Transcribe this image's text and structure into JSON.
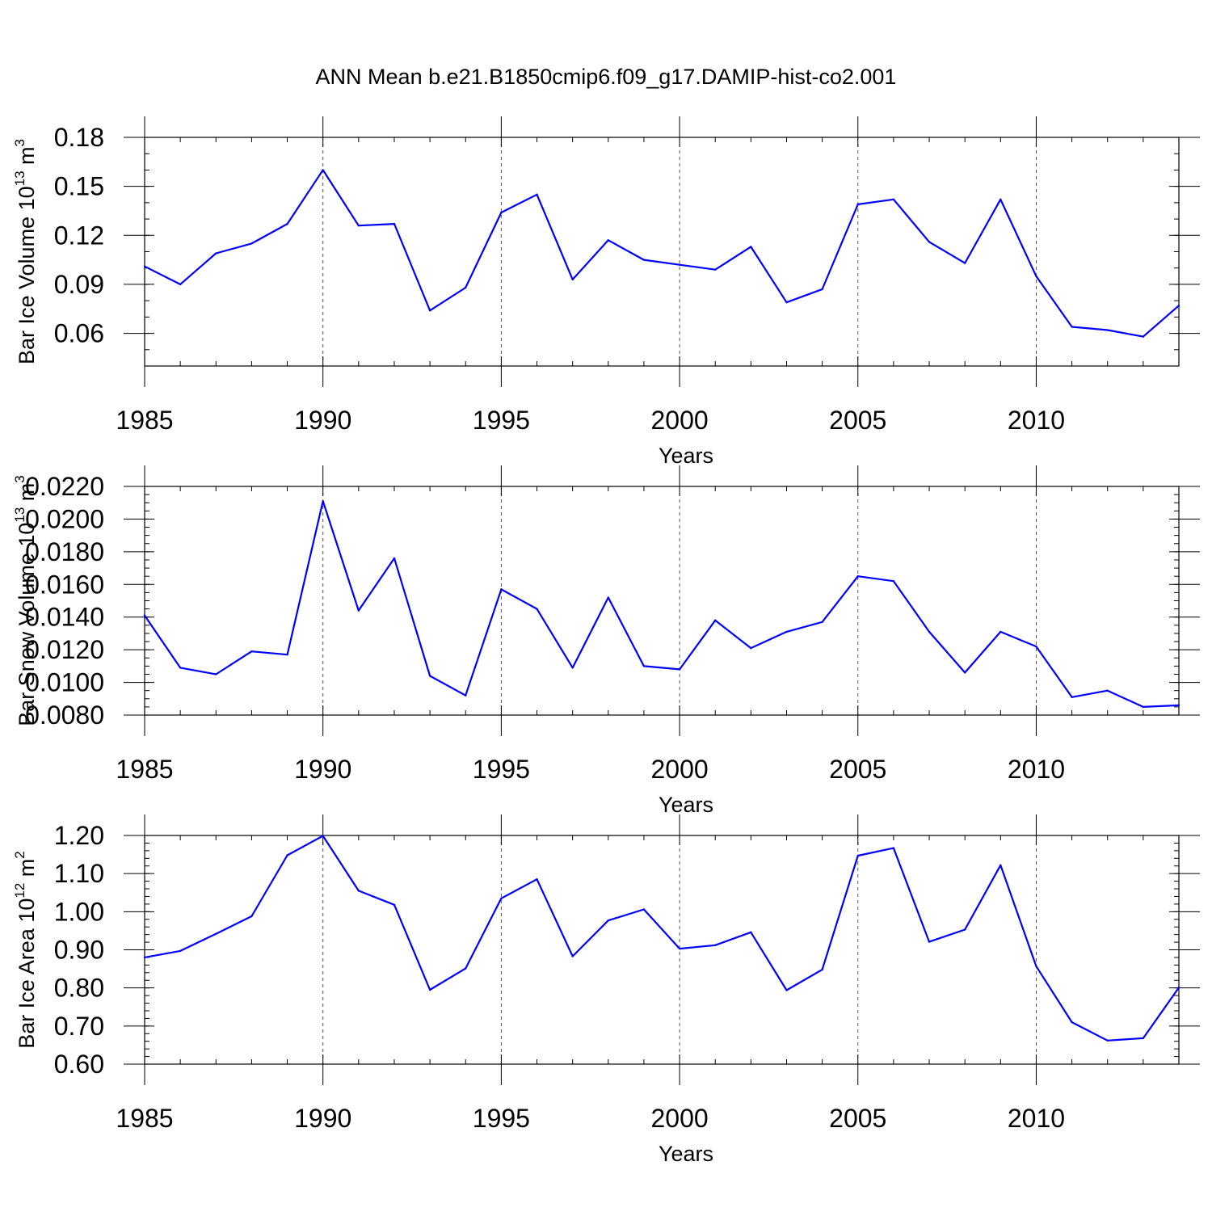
{
  "title": "ANN Mean b.e21.B1850cmip6.f09_g17.DAMIP-hist-co2.001",
  "chart_data": [
    {
      "type": "line",
      "ylabel": {
        "text": "Bar Ice Volume 10",
        "exponent": "13",
        "unit": " m",
        "unit_exponent": "3"
      },
      "xlabel": "Years",
      "xlim": [
        1985,
        2014
      ],
      "ylim": [
        0.04,
        0.18
      ],
      "yticks": [
        0.06,
        0.09,
        0.12,
        0.15,
        0.18
      ],
      "ytick_labels": [
        "0.06",
        "0.09",
        "0.12",
        "0.15",
        "0.18"
      ],
      "yminor_step": 0.01,
      "xticks": [
        1985,
        1990,
        1995,
        2000,
        2005,
        2010
      ],
      "xtick_labels": [
        "1985",
        "1990",
        "1995",
        "2000",
        "2005",
        "2010"
      ],
      "x": [
        1985,
        1986,
        1987,
        1988,
        1989,
        1990,
        1991,
        1992,
        1993,
        1994,
        1995,
        1996,
        1997,
        1998,
        1999,
        2000,
        2001,
        2002,
        2003,
        2004,
        2005,
        2006,
        2007,
        2008,
        2009,
        2010,
        2011,
        2012,
        2013,
        2014
      ],
      "values": [
        0.101,
        0.09,
        0.109,
        0.115,
        0.127,
        0.16,
        0.126,
        0.127,
        0.074,
        0.088,
        0.134,
        0.145,
        0.093,
        0.117,
        0.105,
        0.102,
        0.099,
        0.113,
        0.079,
        0.087,
        0.139,
        0.142,
        0.116,
        0.103,
        0.142,
        0.095,
        0.064,
        0.062,
        0.058,
        0.077
      ]
    },
    {
      "type": "line",
      "ylabel": {
        "text": "Bar Snow Volume 10",
        "exponent": "13",
        "unit": " m",
        "unit_exponent": "3"
      },
      "xlabel": "Years",
      "xlim": [
        1985,
        2014
      ],
      "ylim": [
        0.008,
        0.022
      ],
      "yticks": [
        0.008,
        0.01,
        0.012,
        0.014,
        0.016,
        0.018,
        0.02,
        0.022
      ],
      "ytick_labels": [
        "0.0080",
        "0.0100",
        "0.0120",
        "0.0140",
        "0.0160",
        "0.0180",
        "0.0200",
        "0.0220"
      ],
      "yminor_step": 0.0005,
      "xticks": [
        1985,
        1990,
        1995,
        2000,
        2005,
        2010
      ],
      "xtick_labels": [
        "1985",
        "1990",
        "1995",
        "2000",
        "2005",
        "2010"
      ],
      "x": [
        1985,
        1986,
        1987,
        1988,
        1989,
        1990,
        1991,
        1992,
        1993,
        1994,
        1995,
        1996,
        1997,
        1998,
        1999,
        2000,
        2001,
        2002,
        2003,
        2004,
        2005,
        2006,
        2007,
        2008,
        2009,
        2010,
        2011,
        2012,
        2013,
        2014
      ],
      "values": [
        0.0141,
        0.0109,
        0.0105,
        0.0119,
        0.0117,
        0.0211,
        0.0144,
        0.0176,
        0.0104,
        0.0092,
        0.0157,
        0.0145,
        0.0109,
        0.0152,
        0.011,
        0.0108,
        0.0138,
        0.0121,
        0.0131,
        0.0137,
        0.0165,
        0.0162,
        0.0131,
        0.0106,
        0.0131,
        0.0122,
        0.0091,
        0.0095,
        0.0085,
        0.0086
      ]
    },
    {
      "type": "line",
      "ylabel": {
        "text": "Bar Ice Area 10",
        "exponent": "12",
        "unit": " m",
        "unit_exponent": "2"
      },
      "xlabel": "Years",
      "xlim": [
        1985,
        2014
      ],
      "ylim": [
        0.6,
        1.2
      ],
      "yticks": [
        0.6,
        0.7,
        0.8,
        0.9,
        1.0,
        1.1,
        1.2
      ],
      "ytick_labels": [
        "0.60",
        "0.70",
        "0.80",
        "0.90",
        "1.00",
        "1.10",
        "1.20"
      ],
      "yminor_step": 0.02,
      "xticks": [
        1985,
        1990,
        1995,
        2000,
        2005,
        2010
      ],
      "xtick_labels": [
        "1985",
        "1990",
        "1995",
        "2000",
        "2005",
        "2010"
      ],
      "x": [
        1985,
        1986,
        1987,
        1988,
        1989,
        1990,
        1991,
        1992,
        1993,
        1994,
        1995,
        1996,
        1997,
        1998,
        1999,
        2000,
        2001,
        2002,
        2003,
        2004,
        2005,
        2006,
        2007,
        2008,
        2009,
        2010,
        2011,
        2012,
        2013,
        2014
      ],
      "values": [
        0.88,
        0.897,
        0.942,
        0.988,
        1.148,
        1.199,
        1.055,
        1.018,
        0.795,
        0.851,
        1.035,
        1.085,
        0.883,
        0.977,
        1.006,
        0.903,
        0.912,
        0.946,
        0.794,
        0.848,
        1.147,
        1.167,
        0.921,
        0.953,
        1.122,
        0.857,
        0.71,
        0.662,
        0.668,
        0.801
      ]
    }
  ]
}
